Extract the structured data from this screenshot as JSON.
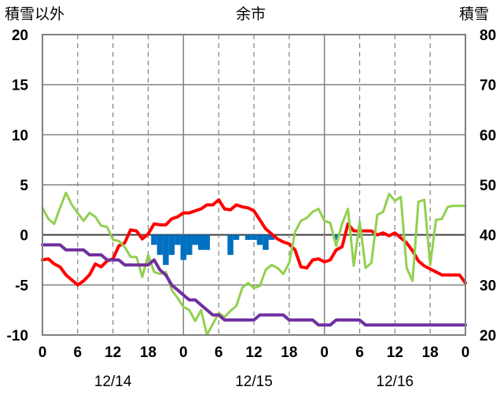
{
  "chart_data": {
    "type": "line",
    "title": "余市",
    "ylabel_left": "積雪以外",
    "ylabel_right": "積雪",
    "ylim_left": [
      -10,
      20
    ],
    "ylim_right": [
      20,
      80
    ],
    "yticks_left": [
      "20",
      "15",
      "10",
      "5",
      "0",
      "-5",
      "-10"
    ],
    "yticks_right": [
      "80",
      "70",
      "60",
      "50",
      "40",
      "30",
      "20"
    ],
    "xlim_hours": [
      0,
      72
    ],
    "xticks": [
      "0",
      "6",
      "12",
      "18",
      "0",
      "6",
      "12",
      "18",
      "0",
      "6",
      "12",
      "18",
      "0"
    ],
    "day_labels": [
      "12/14",
      "12/15",
      "12/16"
    ],
    "grid": true,
    "series": [
      {
        "color": "#ff0000",
        "axis": "left",
        "x": [
          0,
          1,
          2,
          3,
          4,
          5,
          6,
          7,
          8,
          9,
          10,
          11,
          12,
          13,
          14,
          15,
          16,
          17,
          18,
          19,
          20,
          21,
          22,
          23,
          24,
          25,
          26,
          27,
          28,
          29,
          30,
          31,
          32,
          33,
          34,
          35,
          36,
          37,
          38,
          39,
          40,
          41,
          42,
          43,
          44,
          45,
          46,
          47,
          48,
          49,
          50,
          51,
          52,
          53,
          54,
          55,
          56,
          57,
          58,
          59,
          60,
          61,
          62,
          63,
          64,
          65,
          66,
          67,
          68,
          69,
          70,
          71,
          72
        ],
        "values": [
          -2.5,
          -2.4,
          -2.9,
          -3.2,
          -4.0,
          -4.5,
          -5.0,
          -4.6,
          -4.0,
          -2.9,
          -3.2,
          -2.6,
          -2.4,
          -1.1,
          -0.8,
          0.5,
          0.4,
          -0.4,
          0.1,
          1.1,
          1.0,
          1.0,
          1.6,
          1.8,
          2.2,
          2.2,
          2.4,
          2.6,
          3.0,
          3.0,
          3.5,
          2.6,
          2.5,
          3.0,
          2.8,
          2.7,
          2.4,
          1.5,
          0.6,
          0.1,
          -0.4,
          -0.7,
          -0.9,
          -1.5,
          -3.2,
          -3.3,
          -2.5,
          -2.4,
          -2.7,
          -2.5,
          -1.5,
          -1.2,
          1.1,
          0.4,
          0.4,
          0.4,
          0.4,
          0.0,
          0.2,
          -0.1,
          0.2,
          -0.3,
          -0.8,
          -1.6,
          -2.6,
          -3.1,
          -3.4,
          -3.7,
          -4.0,
          -4.0,
          -4.0,
          -4.0,
          -4.8
        ]
      },
      {
        "color": "#92d050",
        "axis": "left",
        "x": [
          0,
          1,
          2,
          3,
          4,
          5,
          6,
          7,
          8,
          9,
          10,
          11,
          12,
          13,
          14,
          15,
          16,
          17,
          18,
          19,
          20,
          21,
          22,
          23,
          24,
          25,
          26,
          27,
          28,
          29,
          30,
          31,
          32,
          33,
          34,
          35,
          36,
          37,
          38,
          39,
          40,
          41,
          42,
          43,
          44,
          45,
          46,
          47,
          48,
          49,
          50,
          51,
          52,
          53,
          54,
          55,
          56,
          57,
          58,
          59,
          60,
          61,
          62,
          63,
          64,
          65,
          66,
          67,
          68,
          69,
          70,
          71,
          72
        ],
        "values": [
          2.7,
          1.6,
          1.1,
          2.7,
          4.2,
          3.0,
          2.2,
          1.4,
          2.2,
          1.8,
          0.9,
          0.8,
          -0.5,
          -0.6,
          -1.2,
          -2.2,
          -2.2,
          -4.2,
          -2.0,
          -3.7,
          -3.9,
          -3.7,
          -5.5,
          -6.3,
          -7.2,
          -7.5,
          -8.6,
          -7.5,
          -10.0,
          -8.9,
          -7.8,
          -8.2,
          -7.6,
          -7.1,
          -5.3,
          -4.8,
          -5.3,
          -5.1,
          -3.5,
          -3.0,
          -3.3,
          -3.9,
          -2.8,
          0.3,
          1.4,
          1.7,
          2.3,
          2.6,
          1.4,
          1.2,
          -1.1,
          1.1,
          2.6,
          -3.1,
          1.3,
          -3.3,
          -2.8,
          2.0,
          2.3,
          4.1,
          3.4,
          3.8,
          -3.3,
          -4.6,
          3.3,
          3.5,
          -3.0,
          1.5,
          1.6,
          2.8,
          2.9,
          2.9,
          2.9
        ]
      },
      {
        "color": "#7030a0",
        "axis": "right",
        "x": [
          0,
          1,
          2,
          3,
          4,
          5,
          6,
          7,
          8,
          9,
          10,
          11,
          12,
          13,
          14,
          15,
          16,
          17,
          18,
          19,
          20,
          21,
          22,
          23,
          24,
          25,
          26,
          27,
          28,
          29,
          30,
          31,
          32,
          33,
          34,
          35,
          36,
          37,
          38,
          39,
          40,
          41,
          42,
          43,
          44,
          45,
          46,
          47,
          48,
          49,
          50,
          51,
          52,
          53,
          54,
          55,
          56,
          57,
          58,
          59,
          60,
          61,
          62,
          63,
          64,
          65,
          66,
          67,
          68,
          69,
          70,
          71,
          72
        ],
        "values": [
          38,
          38,
          38,
          38,
          37,
          37,
          37,
          37,
          36,
          36,
          36,
          35,
          35,
          35,
          34,
          34,
          34,
          34,
          34,
          35,
          33,
          32,
          30,
          29,
          28,
          27,
          27,
          26,
          25,
          24,
          24,
          23,
          23,
          23,
          23,
          23,
          23,
          24,
          24,
          24,
          24,
          24,
          23,
          23,
          23,
          23,
          23,
          22,
          22,
          22,
          23,
          23,
          23,
          23,
          23,
          22,
          22,
          22,
          22,
          22,
          22,
          22,
          22,
          22,
          22,
          22,
          22,
          22,
          22,
          22,
          22,
          22,
          22
        ]
      },
      {
        "color": "#0070c0",
        "axis": "left",
        "kind": "bar-down",
        "x": [
          18,
          19,
          20,
          21,
          22,
          23,
          24,
          25,
          26,
          27,
          28,
          29,
          30,
          31,
          32,
          33,
          34,
          35,
          36,
          37,
          38,
          39,
          40,
          41,
          42,
          43,
          44,
          45,
          46,
          47,
          48,
          49,
          50,
          51,
          52,
          53,
          54,
          55,
          56,
          57,
          58,
          59,
          60,
          61,
          62,
          63,
          64,
          65,
          66,
          67,
          68,
          69,
          70,
          71,
          72
        ],
        "values": [
          0,
          -1,
          -2,
          -3,
          -2,
          -1,
          -2.5,
          -2,
          -1,
          -1.5,
          -1.5,
          0,
          0,
          0,
          -2,
          -0.5,
          0,
          -0.5,
          -0.5,
          -1,
          -1.5,
          -0.5,
          0,
          0,
          0,
          0,
          0,
          0,
          0,
          0,
          0,
          0,
          -0.5,
          0,
          0,
          0,
          0,
          0,
          0,
          0,
          0,
          0,
          0,
          0,
          0,
          0,
          0,
          0,
          0,
          0,
          0,
          0,
          0,
          0,
          0
        ]
      }
    ]
  }
}
